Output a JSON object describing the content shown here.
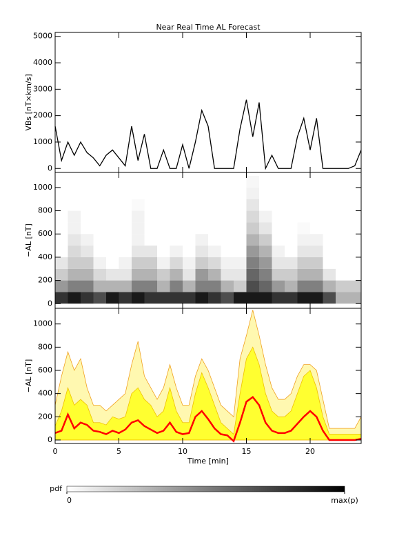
{
  "chart_data": [
    {
      "type": "line",
      "title": "Near Real Time AL Forecast",
      "ylabel": "VBs [nT×km/s]",
      "color": "#000000",
      "x": [
        0,
        0.5,
        1,
        1.5,
        2,
        2.5,
        3,
        3.5,
        4,
        4.5,
        5,
        5.5,
        6,
        6.5,
        7,
        7.5,
        8,
        8.5,
        9,
        9.5,
        10,
        10.5,
        11,
        11.5,
        12,
        12.5,
        13,
        13.5,
        14,
        14.5,
        15,
        15.5,
        16,
        16.5,
        17,
        17.5,
        18,
        18.5,
        19,
        19.5,
        20,
        20.5,
        21,
        21.5,
        22,
        22.5,
        23,
        23.5,
        24
      ],
      "values": [
        1600,
        300,
        1000,
        500,
        1000,
        600,
        400,
        100,
        500,
        700,
        400,
        100,
        1600,
        300,
        1300,
        0,
        0,
        700,
        0,
        0,
        900,
        0,
        1000,
        2200,
        1600,
        0,
        0,
        0,
        0,
        1500,
        2600,
        1200,
        2500,
        0,
        500,
        0,
        0,
        0,
        1200,
        1900,
        700,
        1900,
        0,
        0,
        0,
        0,
        0,
        100,
        700
      ],
      "xlim": [
        0,
        24
      ],
      "xticks": [
        0,
        5,
        10,
        15,
        20
      ],
      "ylim": [
        -150,
        5150
      ],
      "yticks": [
        0,
        1000,
        2000,
        3000,
        4000,
        5000
      ]
    },
    {
      "type": "heatmap",
      "ylabel": "−AL [nT]",
      "x_bins": [
        0,
        1,
        2,
        3,
        4,
        5,
        6,
        7,
        8,
        9,
        10,
        11,
        12,
        13,
        14,
        15,
        16,
        17,
        18,
        19,
        20,
        21,
        22,
        23,
        24
      ],
      "y_bins": [
        0,
        100,
        200,
        300,
        400,
        500,
        600,
        700,
        800,
        900,
        1000,
        1100
      ],
      "z": [
        [
          0.8,
          0.4,
          0.2,
          0.1,
          0,
          0,
          0,
          0,
          0,
          0,
          0
        ],
        [
          0.9,
          0.5,
          0.3,
          0.2,
          0.15,
          0.1,
          0.05,
          0.05,
          0,
          0,
          0
        ],
        [
          0.8,
          0.5,
          0.3,
          0.2,
          0.1,
          0.05,
          0,
          0,
          0,
          0,
          0
        ],
        [
          0.7,
          0.3,
          0.15,
          0.05,
          0,
          0,
          0,
          0,
          0,
          0,
          0
        ],
        [
          0.9,
          0.3,
          0.1,
          0,
          0,
          0,
          0,
          0,
          0,
          0,
          0
        ],
        [
          0.8,
          0.3,
          0.1,
          0.05,
          0,
          0,
          0,
          0,
          0,
          0,
          0
        ],
        [
          0.9,
          0.5,
          0.3,
          0.2,
          0.1,
          0.05,
          0.05,
          0.05,
          0.02,
          0,
          0
        ],
        [
          0.8,
          0.5,
          0.3,
          0.2,
          0.1,
          0,
          0,
          0,
          0,
          0,
          0
        ],
        [
          0.8,
          0.3,
          0.2,
          0.05,
          0,
          0,
          0,
          0,
          0,
          0,
          0
        ],
        [
          0.8,
          0.5,
          0.3,
          0.15,
          0.05,
          0,
          0,
          0,
          0,
          0,
          0
        ],
        [
          0.8,
          0.3,
          0.1,
          0.05,
          0,
          0,
          0,
          0,
          0,
          0,
          0
        ],
        [
          0.9,
          0.5,
          0.4,
          0.2,
          0.1,
          0.05,
          0,
          0,
          0,
          0,
          0
        ],
        [
          0.8,
          0.5,
          0.3,
          0.15,
          0.05,
          0,
          0,
          0,
          0,
          0,
          0
        ],
        [
          0.7,
          0.3,
          0.1,
          0.05,
          0,
          0,
          0,
          0,
          0,
          0,
          0
        ],
        [
          0.9,
          0.2,
          0.1,
          0.05,
          0,
          0,
          0,
          0,
          0,
          0,
          0
        ],
        [
          0.9,
          0.7,
          0.6,
          0.5,
          0.4,
          0.3,
          0.2,
          0.15,
          0.1,
          0.05,
          0.03
        ],
        [
          0.9,
          0.6,
          0.5,
          0.4,
          0.3,
          0.2,
          0.1,
          0.05,
          0,
          0,
          0
        ],
        [
          0.8,
          0.4,
          0.2,
          0.1,
          0.05,
          0,
          0,
          0,
          0,
          0,
          0
        ],
        [
          0.8,
          0.3,
          0.2,
          0.1,
          0,
          0,
          0,
          0,
          0,
          0,
          0
        ],
        [
          0.9,
          0.5,
          0.3,
          0.2,
          0.1,
          0.05,
          0.02,
          0,
          0,
          0,
          0
        ],
        [
          0.9,
          0.5,
          0.3,
          0.2,
          0.1,
          0.05,
          0,
          0,
          0,
          0,
          0
        ],
        [
          0.7,
          0.3,
          0.1,
          0,
          0,
          0,
          0,
          0,
          0,
          0,
          0
        ],
        [
          0.3,
          0.2,
          0,
          0,
          0,
          0,
          0,
          0,
          0,
          0,
          0
        ],
        [
          0.3,
          0.2,
          0,
          0,
          0,
          0,
          0,
          0,
          0,
          0,
          0
        ]
      ],
      "xlim": [
        0,
        24
      ],
      "xticks": [
        0,
        5,
        10,
        15,
        20
      ],
      "ylim": [
        -40,
        1130
      ],
      "yticks": [
        0,
        200,
        400,
        600,
        800,
        1000
      ],
      "colorbar": {
        "label": "pdf",
        "range": [
          0,
          1
        ],
        "ticks": [
          0,
          {
            "value": 1,
            "label": "max(p)"
          }
        ]
      }
    },
    {
      "type": "band",
      "ylabel": "−AL [nT]",
      "xlabel": "Time [min]",
      "x": [
        0,
        0.5,
        1,
        1.5,
        2,
        2.5,
        3,
        3.5,
        4,
        4.5,
        5,
        5.5,
        6,
        6.5,
        7,
        7.5,
        8,
        8.5,
        9,
        9.5,
        10,
        10.5,
        11,
        11.5,
        12,
        12.5,
        13,
        13.5,
        14,
        14.5,
        15,
        15.5,
        16,
        16.5,
        17,
        17.5,
        18,
        18.5,
        19,
        19.5,
        20,
        20.5,
        21,
        21.5,
        22,
        22.5,
        23,
        23.5,
        24
      ],
      "series": [
        {
          "color": "#fff8b0",
          "edge": "#f0a020",
          "values": [
            300,
            550,
            760,
            600,
            700,
            450,
            300,
            300,
            250,
            300,
            350,
            400,
            650,
            850,
            550,
            450,
            350,
            450,
            650,
            450,
            300,
            300,
            550,
            700,
            600,
            450,
            300,
            250,
            200,
            700,
            900,
            1120,
            900,
            650,
            450,
            350,
            350,
            400,
            550,
            650,
            650,
            600,
            350,
            100,
            100,
            100,
            100,
            100,
            200
          ]
        },
        {
          "color": "#ffff30",
          "edge": "#f0c000",
          "values": [
            120,
            250,
            450,
            300,
            350,
            300,
            150,
            150,
            130,
            200,
            180,
            200,
            400,
            450,
            350,
            300,
            200,
            250,
            450,
            250,
            150,
            150,
            400,
            580,
            450,
            300,
            150,
            100,
            50,
            400,
            700,
            800,
            650,
            400,
            250,
            200,
            200,
            250,
            400,
            550,
            600,
            450,
            200,
            50,
            50,
            50,
            50,
            50,
            50
          ]
        },
        {
          "color": "#ff0000",
          "values": [
            60,
            80,
            220,
            100,
            150,
            130,
            80,
            70,
            50,
            80,
            60,
            90,
            150,
            170,
            120,
            90,
            60,
            80,
            150,
            70,
            50,
            60,
            200,
            250,
            180,
            100,
            50,
            40,
            -10,
            150,
            330,
            370,
            300,
            150,
            80,
            60,
            60,
            80,
            140,
            200,
            250,
            200,
            80,
            0,
            0,
            0,
            0,
            0,
            10
          ]
        }
      ],
      "xlim": [
        0,
        24
      ],
      "xticks": [
        0,
        5,
        10,
        15,
        20
      ],
      "ylim": [
        -30,
        1135
      ],
      "yticks": [
        0,
        200,
        400,
        600,
        800,
        1000
      ]
    }
  ]
}
